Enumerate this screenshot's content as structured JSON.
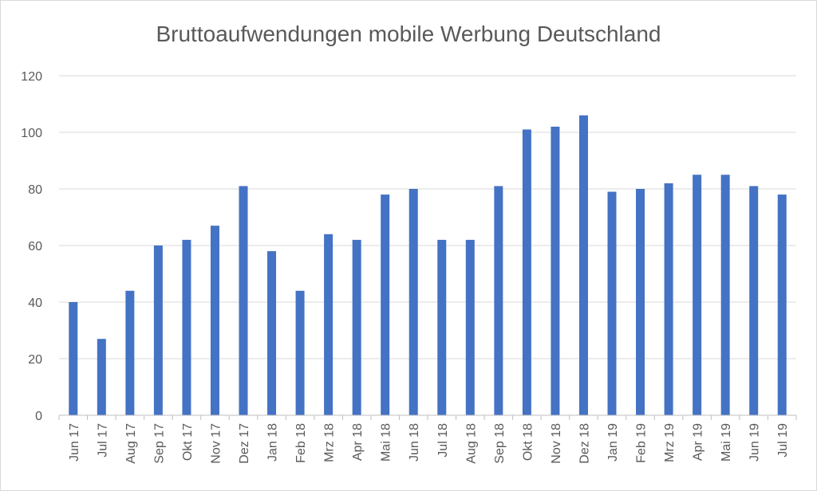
{
  "chart_data": {
    "type": "bar",
    "title": "Bruttoaufwendungen mobile Werbung Deutschland",
    "xlabel": "",
    "ylabel": "",
    "ylim": [
      0,
      120
    ],
    "yticks": [
      0,
      20,
      40,
      60,
      80,
      100,
      120
    ],
    "grid": true,
    "legend": "none",
    "bar_color": "#4472c4",
    "categories": [
      "Jun 17",
      "Jul 17",
      "Aug 17",
      "Sep 17",
      "Okt 17",
      "Nov 17",
      "Dez 17",
      "Jan 18",
      "Feb 18",
      "Mrz 18",
      "Apr 18",
      "Mai 18",
      "Jun 18",
      "Jul 18",
      "Aug 18",
      "Sep 18",
      "Okt 18",
      "Nov 18",
      "Dez 18",
      "Jan 19",
      "Feb 19",
      "Mrz 19",
      "Apr 19",
      "Mai 19",
      "Jun 19",
      "Jul 19"
    ],
    "values": [
      40,
      27,
      44,
      60,
      62,
      67,
      81,
      58,
      44,
      64,
      62,
      78,
      80,
      62,
      62,
      81,
      101,
      102,
      106,
      79,
      80,
      82,
      85,
      85,
      81,
      78
    ]
  }
}
